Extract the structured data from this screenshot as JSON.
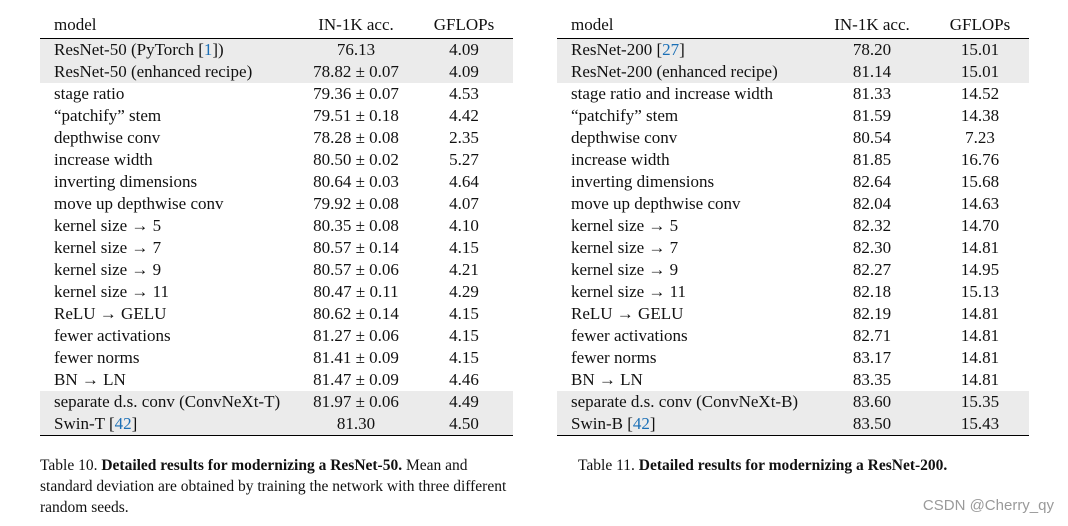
{
  "left_table": {
    "headers": {
      "model": "model",
      "acc": "IN-1K acc.",
      "gflops": "GFLOPs"
    },
    "rows": [
      {
        "model": "ResNet-50 (PyTorch [",
        "cite": "1",
        "model_suffix": "])",
        "acc": "76.13",
        "gflops": "4.09",
        "shaded": true
      },
      {
        "model": "ResNet-50 (enhanced recipe)",
        "acc": "78.82 ± 0.07",
        "gflops": "4.09",
        "shaded": true
      },
      {
        "model": "stage ratio",
        "acc": "79.36 ± 0.07",
        "gflops": "4.53"
      },
      {
        "model": "“patchify” stem",
        "acc": "79.51 ± 0.18",
        "gflops": "4.42"
      },
      {
        "model": "depthwise conv",
        "acc": "78.28 ± 0.08",
        "gflops": "2.35"
      },
      {
        "model": "increase width",
        "acc": "80.50 ± 0.02",
        "gflops": "5.27"
      },
      {
        "model": "inverting dimensions",
        "acc": "80.64 ± 0.03",
        "gflops": "4.64"
      },
      {
        "model": "move up depthwise conv",
        "acc": "79.92 ± 0.08",
        "gflops": "4.07"
      },
      {
        "model": "kernel size → 5",
        "acc": "80.35 ± 0.08",
        "gflops": "4.10"
      },
      {
        "model": "kernel size → 7",
        "acc": "80.57 ± 0.14",
        "gflops": "4.15"
      },
      {
        "model": "kernel size → 9",
        "acc": "80.57 ± 0.06",
        "gflops": "4.21"
      },
      {
        "model": "kernel size → 11",
        "acc": "80.47 ± 0.11",
        "gflops": "4.29"
      },
      {
        "model": "ReLU → GELU",
        "acc": "80.62 ± 0.14",
        "gflops": "4.15"
      },
      {
        "model": "fewer activations",
        "acc": "81.27 ± 0.06",
        "gflops": "4.15"
      },
      {
        "model": "fewer norms",
        "acc": "81.41 ± 0.09",
        "gflops": "4.15"
      },
      {
        "model": "BN → LN",
        "acc": "81.47 ± 0.09",
        "gflops": "4.46"
      },
      {
        "model": "separate d.s. conv (ConvNeXt-T)",
        "acc": "81.97 ± 0.06",
        "gflops": "4.49",
        "shaded": true
      },
      {
        "model": "Swin-T [",
        "cite": "42",
        "model_suffix": "]",
        "acc": "81.30",
        "gflops": "4.50",
        "shaded": true
      }
    ],
    "caption": {
      "prefix": "Table 10. ",
      "bold": "Detailed results for modernizing a ResNet-50.",
      "rest": " Mean and standard deviation are obtained by training the network with three different random seeds."
    }
  },
  "right_table": {
    "headers": {
      "model": "model",
      "acc": "IN-1K acc.",
      "gflops": "GFLOPs"
    },
    "rows": [
      {
        "model": "ResNet-200 [",
        "cite": "27",
        "model_suffix": "]",
        "acc": "78.20",
        "gflops": "15.01",
        "shaded": true
      },
      {
        "model": "ResNet-200 (enhanced recipe)",
        "acc": "81.14",
        "gflops": "15.01",
        "shaded": true
      },
      {
        "model": "stage ratio and increase width",
        "acc": "81.33",
        "gflops": "14.52"
      },
      {
        "model": "“patchify” stem",
        "acc": "81.59",
        "gflops": "14.38"
      },
      {
        "model": "depthwise conv",
        "acc": "80.54",
        "gflops": "7.23"
      },
      {
        "model": "increase width",
        "acc": "81.85",
        "gflops": "16.76"
      },
      {
        "model": "inverting dimensions",
        "acc": "82.64",
        "gflops": "15.68"
      },
      {
        "model": "move up depthwise conv",
        "acc": "82.04",
        "gflops": "14.63"
      },
      {
        "model": "kernel size → 5",
        "acc": "82.32",
        "gflops": "14.70"
      },
      {
        "model": "kernel size → 7",
        "acc": "82.30",
        "gflops": "14.81"
      },
      {
        "model": "kernel size → 9",
        "acc": "82.27",
        "gflops": "14.95"
      },
      {
        "model": "kernel size → 11",
        "acc": "82.18",
        "gflops": "15.13"
      },
      {
        "model": "ReLU → GELU",
        "acc": "82.19",
        "gflops": "14.81"
      },
      {
        "model": "fewer activations",
        "acc": "82.71",
        "gflops": "14.81"
      },
      {
        "model": "fewer norms",
        "acc": "83.17",
        "gflops": "14.81"
      },
      {
        "model": "BN → LN",
        "acc": "83.35",
        "gflops": "14.81"
      },
      {
        "model": "separate d.s. conv (ConvNeXt-B)",
        "acc": "83.60",
        "gflops": "15.35",
        "shaded": true
      },
      {
        "model": "Swin-B [",
        "cite": "42",
        "model_suffix": "]",
        "acc": "83.50",
        "gflops": "15.43",
        "shaded": true
      }
    ],
    "caption": {
      "prefix": "Table 11. ",
      "bold": "Detailed results for modernizing a ResNet-200.",
      "rest": ""
    }
  },
  "watermark": "CSDN @Cherry_qy",
  "colors": {
    "citation": "#1a6fb6",
    "shade": "#ebebeb",
    "watermark": "#9a9a9a"
  }
}
